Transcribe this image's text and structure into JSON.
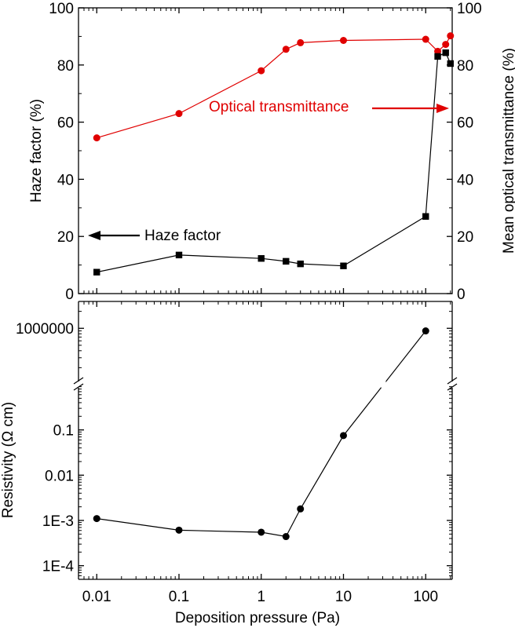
{
  "colors": {
    "haze": "#000000",
    "transmittance": "#e00000",
    "axis": "#000000"
  },
  "chart_data": [
    {
      "type": "line",
      "x_scale": "log",
      "xlim": [
        0.006,
        210
      ],
      "ylabel": "Haze factor (%)",
      "ylabel_right": "Mean optical transmittance (%)",
      "ylim": [
        0,
        100
      ],
      "ylim_right": [
        0,
        100
      ],
      "y_ticks": [
        "0",
        "20",
        "40",
        "60",
        "80",
        "100"
      ],
      "y_ticks_right": [
        "0",
        "20",
        "40",
        "60",
        "80",
        "100"
      ],
      "grid": false,
      "annotations": {
        "transmittance": "Optical transmittance",
        "haze": "Haze factor"
      },
      "series": [
        {
          "name": "Optical transmittance",
          "axis": "right",
          "marker": "circle",
          "x": [
            0.01,
            0.1,
            1,
            2,
            3,
            10,
            100,
            140,
            175,
            200
          ],
          "y": [
            54.5,
            63,
            78,
            85.5,
            87.8,
            88.6,
            89,
            84.8,
            87.2,
            90.2
          ]
        },
        {
          "name": "Haze factor",
          "axis": "left",
          "marker": "square",
          "x": [
            0.01,
            0.1,
            1,
            2,
            3,
            10,
            100,
            140,
            175,
            200
          ],
          "y": [
            7.5,
            13.5,
            12.3,
            11.3,
            10.4,
            9.7,
            27,
            83,
            84.3,
            80.5
          ]
        }
      ]
    },
    {
      "type": "line",
      "x_scale": "log",
      "y_scale": "log-broken",
      "xlabel": "Deposition pressure (Pa)",
      "ylabel": "Resistivity (Ω cm)",
      "xlim": [
        0.006,
        210
      ],
      "x_ticks": [
        "0.01",
        "0.1",
        "1",
        "10",
        "100"
      ],
      "y_ticks": [
        "1E-4",
        "1E-3",
        "0.01",
        "0.1",
        "1000000"
      ],
      "y_range_lower": [
        5e-05,
        1
      ],
      "y_range_upper": [
        100000,
        3000000
      ],
      "grid": false,
      "series": [
        {
          "name": "",
          "marker": "circle",
          "x": [
            0.01,
            0.1,
            1,
            2,
            3,
            10,
            100
          ],
          "y": [
            0.0011,
            0.00061,
            0.00055,
            0.00044,
            0.0018,
            0.075,
            900000
          ]
        }
      ]
    }
  ]
}
